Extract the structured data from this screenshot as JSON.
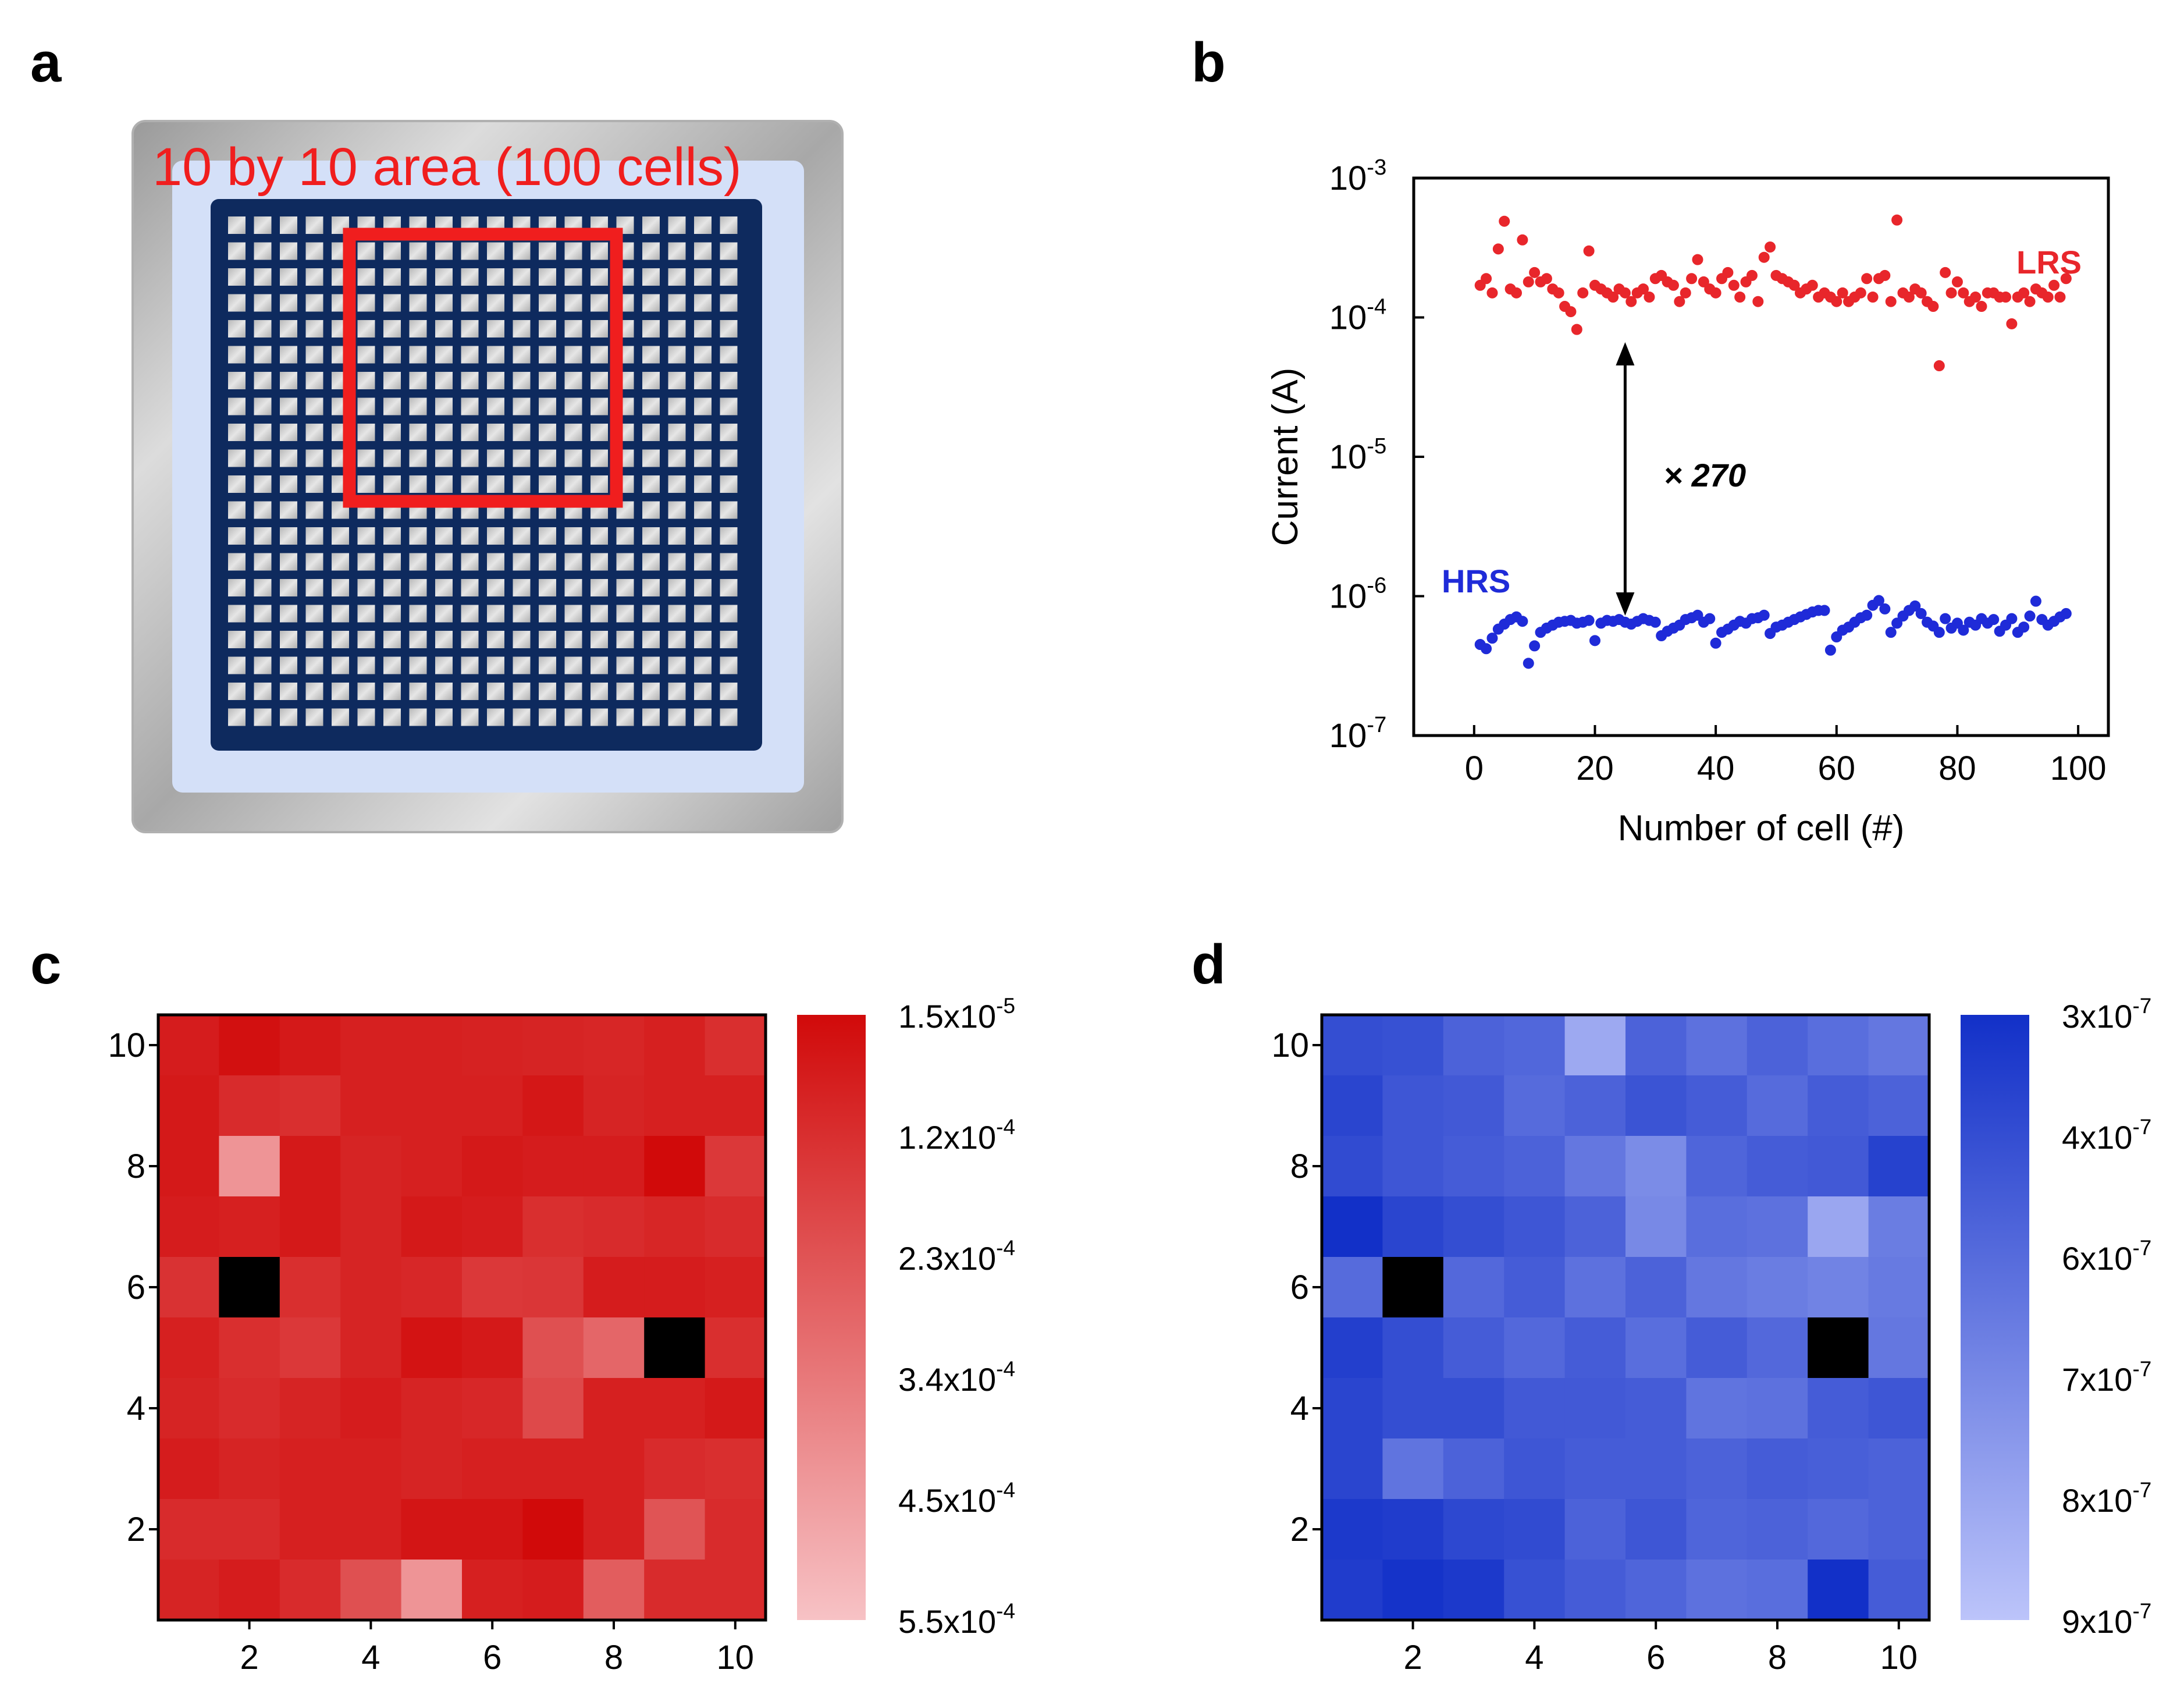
{
  "panels": {
    "a": {
      "letter": "a",
      "title": "10 by 10 area (100 cells)",
      "array_rows": 20,
      "array_cols": 20,
      "highlight_rows": [
        1,
        10
      ],
      "highlight_cols": [
        5,
        14
      ]
    },
    "b": {
      "letter": "b"
    },
    "c": {
      "letter": "c"
    },
    "d": {
      "letter": "d"
    }
  },
  "colors": {
    "lrs": "#e8262b",
    "hrs": "#1f2bd8",
    "array_frame": "#0e2a5e",
    "highlight": "#f01e1e",
    "metal": "#c8c8c8",
    "substrate": "#d4e0f8"
  },
  "chart_data": [
    {
      "id": "b",
      "type": "scatter",
      "xlabel": "Number of cell (#)",
      "ylabel": "Current (A)",
      "xlim": [
        -10,
        105
      ],
      "ylim_exp": [
        -7,
        -3
      ],
      "yscale": "log",
      "xticks": [
        "0",
        "20",
        "40",
        "60",
        "80",
        "100"
      ],
      "ytick_exps": [
        "-3",
        "-4",
        "-5",
        "-6",
        "-7"
      ],
      "ytick_base": "10",
      "annotation": "× 270",
      "series": [
        {
          "name": "LRS",
          "color": "#e8262b",
          "x": [
            1,
            2,
            3,
            4,
            5,
            6,
            7,
            8,
            9,
            10,
            11,
            12,
            13,
            14,
            15,
            16,
            17,
            18,
            19,
            20,
            21,
            22,
            23,
            24,
            25,
            26,
            27,
            28,
            29,
            30,
            31,
            32,
            33,
            34,
            35,
            36,
            37,
            38,
            39,
            40,
            41,
            42,
            43,
            44,
            45,
            46,
            47,
            48,
            49,
            50,
            51,
            52,
            53,
            54,
            55,
            56,
            57,
            58,
            59,
            60,
            61,
            62,
            63,
            64,
            65,
            66,
            67,
            68,
            69,
            70,
            71,
            72,
            73,
            74,
            75,
            76,
            77,
            78,
            79,
            80,
            81,
            82,
            83,
            84,
            85,
            86,
            87,
            88,
            89,
            90,
            91,
            92,
            93,
            94,
            95,
            96,
            97,
            98
          ],
          "y": [
            0.00017,
            0.00019,
            0.00015,
            0.00031,
            0.00049,
            0.00016,
            0.00015,
            0.00036,
            0.00018,
            0.00021,
            0.00018,
            0.00019,
            0.00016,
            0.00015,
            0.00012,
            0.00011,
            8.2e-05,
            0.00015,
            0.0003,
            0.00017,
            0.00016,
            0.00015,
            0.00014,
            0.00016,
            0.00015,
            0.00013,
            0.00015,
            0.00016,
            0.00014,
            0.00019,
            0.0002,
            0.00018,
            0.00017,
            0.00013,
            0.00015,
            0.00019,
            0.00026,
            0.00018,
            0.00016,
            0.00015,
            0.00019,
            0.00021,
            0.00017,
            0.00014,
            0.00018,
            0.0002,
            0.00013,
            0.00027,
            0.00032,
            0.0002,
            0.00019,
            0.00018,
            0.00017,
            0.00015,
            0.00016,
            0.00017,
            0.00014,
            0.00015,
            0.00014,
            0.00013,
            0.00015,
            0.00013,
            0.00014,
            0.00015,
            0.00019,
            0.00014,
            0.00019,
            0.0002,
            0.00013,
            0.0005,
            0.00015,
            0.00014,
            0.00016,
            0.00015,
            0.00013,
            0.00012,
            4.5e-05,
            0.00021,
            0.00015,
            0.00018,
            0.00015,
            0.00013,
            0.00014,
            0.00012,
            0.00015,
            0.00015,
            0.00014,
            0.00014,
            9e-05,
            0.00014,
            0.00015,
            0.00013,
            0.00016,
            0.00015,
            0.00014,
            0.00017,
            0.00014,
            0.00019
          ]
        },
        {
          "name": "HRS",
          "color": "#1f2bd8",
          "x": [
            1,
            2,
            3,
            4,
            5,
            6,
            7,
            8,
            9,
            10,
            11,
            12,
            13,
            14,
            15,
            16,
            17,
            18,
            19,
            20,
            21,
            22,
            23,
            24,
            25,
            26,
            27,
            28,
            29,
            30,
            31,
            32,
            33,
            34,
            35,
            36,
            37,
            38,
            39,
            40,
            41,
            42,
            43,
            44,
            45,
            46,
            47,
            48,
            49,
            50,
            51,
            52,
            53,
            54,
            55,
            56,
            57,
            58,
            59,
            60,
            61,
            62,
            63,
            64,
            65,
            66,
            67,
            68,
            69,
            70,
            71,
            72,
            73,
            74,
            75,
            76,
            77,
            78,
            79,
            80,
            81,
            82,
            83,
            84,
            85,
            86,
            87,
            88,
            89,
            90,
            91,
            92,
            93,
            94,
            95,
            96,
            97,
            98
          ],
          "y": [
            4.5e-07,
            4.2e-07,
            5e-07,
            5.8e-07,
            6.3e-07,
            6.8e-07,
            7.1e-07,
            6.6e-07,
            3.3e-07,
            4.4e-07,
            5.5e-07,
            5.9e-07,
            6.2e-07,
            6.5e-07,
            6.6e-07,
            6.7e-07,
            6.4e-07,
            6.5e-07,
            6.7e-07,
            4.8e-07,
            6.4e-07,
            6.7e-07,
            6.6e-07,
            6.8e-07,
            6.5e-07,
            6.3e-07,
            6.6e-07,
            6.9e-07,
            6.7e-07,
            6.5e-07,
            5.2e-07,
            5.6e-07,
            5.9e-07,
            6.2e-07,
            6.8e-07,
            7e-07,
            7.3e-07,
            6.5e-07,
            6.9e-07,
            4.6e-07,
            5.5e-07,
            5.8e-07,
            6.2e-07,
            6.6e-07,
            6.4e-07,
            6.9e-07,
            7e-07,
            7.3e-07,
            5.4e-07,
            6e-07,
            6.2e-07,
            6.5e-07,
            6.8e-07,
            7.1e-07,
            7.4e-07,
            7.7e-07,
            7.9e-07,
            7.9e-07,
            4.1e-07,
            5.1e-07,
            5.7e-07,
            6e-07,
            6.5e-07,
            7e-07,
            7.3e-07,
            8.6e-07,
            9.3e-07,
            8.1e-07,
            5.5e-07,
            6.4e-07,
            7.2e-07,
            7.9e-07,
            8.5e-07,
            7.5e-07,
            6.5e-07,
            6.1e-07,
            5.5e-07,
            6.9e-07,
            5.9e-07,
            6.4e-07,
            5.7e-07,
            6.5e-07,
            6.2e-07,
            6.9e-07,
            6.4e-07,
            6.8e-07,
            5.6e-07,
            6.2e-07,
            6.9e-07,
            5.5e-07,
            6e-07,
            7.2e-07,
            9.2e-07,
            6.8e-07,
            6.2e-07,
            6.6e-07,
            7.1e-07,
            7.5e-07
          ]
        }
      ]
    },
    {
      "id": "c",
      "type": "heatmap",
      "xticks": [
        "2",
        "4",
        "6",
        "8",
        "10"
      ],
      "yticks": [
        "10",
        "8",
        "6",
        "4",
        "2"
      ],
      "grid_rows_top_to_bottom": [
        [
          0.9,
          0.97,
          0.92,
          0.88,
          0.88,
          0.87,
          0.86,
          0.85,
          0.88,
          0.8
        ],
        [
          0.92,
          0.82,
          0.8,
          0.88,
          0.88,
          0.88,
          0.93,
          0.86,
          0.88,
          0.88
        ],
        [
          0.92,
          0.25,
          0.92,
          0.86,
          0.88,
          0.92,
          0.9,
          0.9,
          1.0,
          0.75
        ],
        [
          0.9,
          0.88,
          0.92,
          0.86,
          0.92,
          0.9,
          0.8,
          0.82,
          0.85,
          0.82
        ],
        [
          0.78,
          null,
          0.8,
          0.86,
          0.84,
          0.75,
          0.76,
          0.9,
          0.9,
          0.88
        ],
        [
          0.88,
          0.8,
          0.75,
          0.86,
          0.95,
          0.92,
          0.62,
          0.5,
          null,
          0.8
        ],
        [
          0.86,
          0.82,
          0.86,
          0.9,
          0.86,
          0.84,
          0.66,
          0.88,
          0.88,
          0.92
        ],
        [
          0.9,
          0.86,
          0.88,
          0.88,
          0.86,
          0.88,
          0.88,
          0.88,
          0.82,
          0.8
        ],
        [
          0.82,
          0.82,
          0.88,
          0.88,
          0.94,
          0.94,
          1.02,
          0.88,
          0.6,
          0.82
        ],
        [
          0.86,
          0.9,
          0.82,
          0.62,
          0.25,
          0.88,
          0.9,
          0.55,
          0.82,
          0.82
        ]
      ],
      "colorbar": {
        "color_top": "#d10a0a",
        "color_bottom": "#f7c2c5",
        "labels": [
          {
            "mant": "1.5x10",
            "exp": "-5"
          },
          {
            "mant": "1.2x10",
            "exp": "-4"
          },
          {
            "mant": "2.3x10",
            "exp": "-4"
          },
          {
            "mant": "3.4x10",
            "exp": "-4"
          },
          {
            "mant": "4.5x10",
            "exp": "-4"
          },
          {
            "mant": "5.5x10",
            "exp": "-4"
          }
        ]
      }
    },
    {
      "id": "d",
      "type": "heatmap",
      "xticks": [
        "2",
        "4",
        "6",
        "8",
        "10"
      ],
      "yticks": [
        "10",
        "8",
        "6",
        "4",
        "2"
      ],
      "grid_rows_top_to_bottom": [
        [
          0.8,
          0.78,
          0.66,
          0.63,
          0.18,
          0.66,
          0.56,
          0.66,
          0.58,
          0.52
        ],
        [
          0.86,
          0.74,
          0.72,
          0.6,
          0.66,
          0.76,
          0.7,
          0.6,
          0.7,
          0.66
        ],
        [
          0.82,
          0.74,
          0.7,
          0.66,
          0.52,
          0.38,
          0.64,
          0.7,
          0.72,
          0.88
        ],
        [
          1.0,
          0.86,
          0.8,
          0.74,
          0.66,
          0.4,
          0.58,
          0.56,
          0.2,
          0.48
        ],
        [
          0.6,
          null,
          0.62,
          0.7,
          0.56,
          0.66,
          0.52,
          0.48,
          0.44,
          0.5
        ],
        [
          0.9,
          0.8,
          0.7,
          0.62,
          0.7,
          0.58,
          0.7,
          0.62,
          null,
          0.52
        ],
        [
          0.86,
          0.8,
          0.8,
          0.72,
          0.72,
          0.7,
          0.54,
          0.56,
          0.7,
          0.74
        ],
        [
          0.86,
          0.54,
          0.66,
          0.74,
          0.7,
          0.7,
          0.66,
          0.7,
          0.68,
          0.66
        ],
        [
          0.94,
          0.92,
          0.84,
          0.82,
          0.66,
          0.74,
          0.64,
          0.66,
          0.62,
          0.66
        ],
        [
          0.92,
          0.98,
          0.94,
          0.78,
          0.7,
          0.64,
          0.56,
          0.58,
          1.2,
          0.7
        ]
      ],
      "colorbar": {
        "color_top": "#1230c8",
        "color_bottom": "#bcc4fa",
        "labels": [
          {
            "mant": "3x10",
            "exp": "-7"
          },
          {
            "mant": "4x10",
            "exp": "-7"
          },
          {
            "mant": "6x10",
            "exp": "-7"
          },
          {
            "mant": "7x10",
            "exp": "-7"
          },
          {
            "mant": "8x10",
            "exp": "-7"
          },
          {
            "mant": "9x10",
            "exp": "-7"
          }
        ]
      }
    }
  ]
}
